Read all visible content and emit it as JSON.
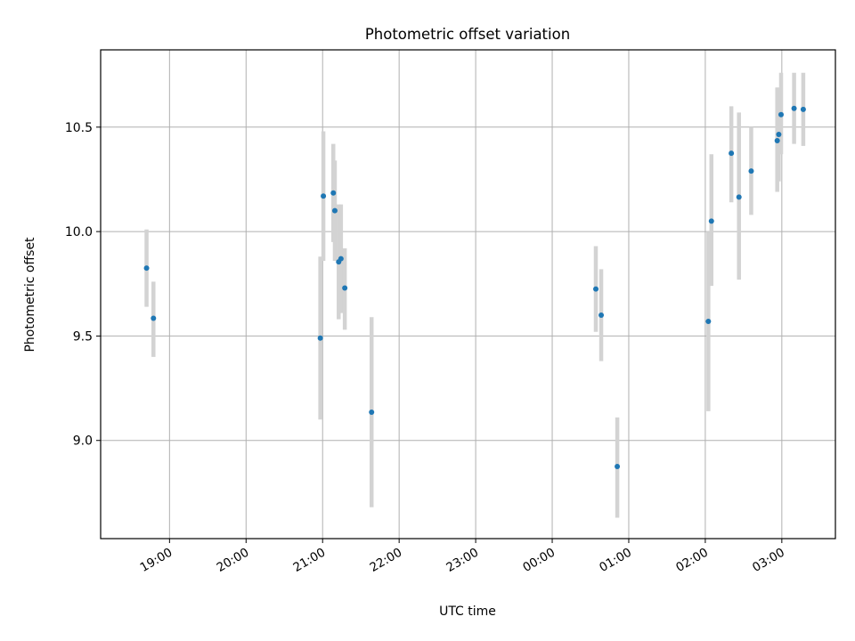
{
  "chart_data": {
    "type": "scatter",
    "title": "Photometric offset variation",
    "xlabel": "UTC time",
    "ylabel": "Photometric offset",
    "x_unit": "UTC hour (previous evening < 24 ≤ next morning)",
    "xlim": [
      18.1,
      27.7
    ],
    "ylim": [
      8.53,
      10.87
    ],
    "x_ticks": [
      {
        "value": 19,
        "label": "19:00"
      },
      {
        "value": 20,
        "label": "20:00"
      },
      {
        "value": 21,
        "label": "21:00"
      },
      {
        "value": 22,
        "label": "22:00"
      },
      {
        "value": 23,
        "label": "23:00"
      },
      {
        "value": 24,
        "label": "00:00"
      },
      {
        "value": 25,
        "label": "01:00"
      },
      {
        "value": 26,
        "label": "02:00"
      },
      {
        "value": 27,
        "label": "03:00"
      }
    ],
    "y_ticks": [
      {
        "value": 9.0,
        "label": "9.0"
      },
      {
        "value": 9.5,
        "label": "9.5"
      },
      {
        "value": 10.0,
        "label": "10.0"
      },
      {
        "value": 10.5,
        "label": "10.5"
      }
    ],
    "grid": true,
    "colors": {
      "point": "#1f77b4",
      "errorbar": "#d3d3d3",
      "grid": "#b0b0b0"
    },
    "points": [
      {
        "x": 18.7,
        "y": 9.825,
        "ylow": 9.64,
        "yhigh": 10.01
      },
      {
        "x": 18.79,
        "y": 9.585,
        "ylow": 9.4,
        "yhigh": 9.76
      },
      {
        "x": 20.97,
        "y": 9.49,
        "ylow": 9.1,
        "yhigh": 9.88
      },
      {
        "x": 21.01,
        "y": 10.17,
        "ylow": 9.86,
        "yhigh": 10.48
      },
      {
        "x": 21.14,
        "y": 10.185,
        "ylow": 9.95,
        "yhigh": 10.42
      },
      {
        "x": 21.16,
        "y": 10.1,
        "ylow": 9.86,
        "yhigh": 10.34
      },
      {
        "x": 21.21,
        "y": 9.855,
        "ylow": 9.58,
        "yhigh": 10.13
      },
      {
        "x": 21.24,
        "y": 9.87,
        "ylow": 9.61,
        "yhigh": 10.13
      },
      {
        "x": 21.29,
        "y": 9.73,
        "ylow": 9.53,
        "yhigh": 9.92
      },
      {
        "x": 21.64,
        "y": 9.135,
        "ylow": 8.68,
        "yhigh": 9.59
      },
      {
        "x": 24.57,
        "y": 9.725,
        "ylow": 9.52,
        "yhigh": 9.93
      },
      {
        "x": 24.64,
        "y": 9.6,
        "ylow": 9.38,
        "yhigh": 9.82
      },
      {
        "x": 24.85,
        "y": 8.875,
        "ylow": 8.63,
        "yhigh": 9.11
      },
      {
        "x": 26.04,
        "y": 9.57,
        "ylow": 9.14,
        "yhigh": 10.0
      },
      {
        "x": 26.08,
        "y": 10.05,
        "ylow": 9.74,
        "yhigh": 10.37
      },
      {
        "x": 26.34,
        "y": 10.375,
        "ylow": 10.14,
        "yhigh": 10.6
      },
      {
        "x": 26.44,
        "y": 10.165,
        "ylow": 9.77,
        "yhigh": 10.57
      },
      {
        "x": 26.6,
        "y": 10.29,
        "ylow": 10.08,
        "yhigh": 10.5
      },
      {
        "x": 26.94,
        "y": 10.435,
        "ylow": 10.19,
        "yhigh": 10.69
      },
      {
        "x": 26.96,
        "y": 10.465,
        "ylow": 10.24,
        "yhigh": 10.68
      },
      {
        "x": 26.99,
        "y": 10.56,
        "ylow": 10.37,
        "yhigh": 10.76
      },
      {
        "x": 27.16,
        "y": 10.59,
        "ylow": 10.42,
        "yhigh": 10.76
      },
      {
        "x": 27.28,
        "y": 10.585,
        "ylow": 10.41,
        "yhigh": 10.76
      }
    ]
  }
}
